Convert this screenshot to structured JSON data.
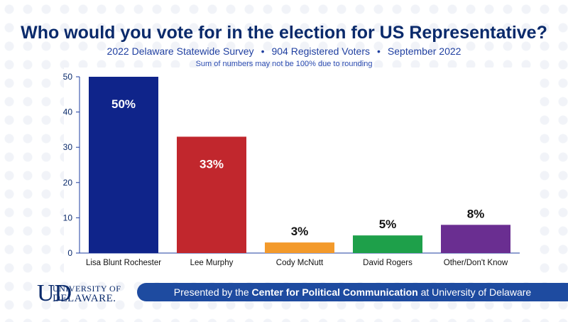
{
  "header": {
    "title": "Who would you vote for in the election for US Representative?",
    "survey": "2022 Delaware Statewide Survey",
    "voters": "904 Registered Voters",
    "date": "September 2022",
    "separator": "•",
    "note": "Sum of numbers may not be 100% due to rounding"
  },
  "footer": {
    "prefix": "Presented by the",
    "org": "Center for Political Communication",
    "suffix": "at University of Delaware"
  },
  "logo": {
    "mark": "UD",
    "line1": "UNIVERSITY OF",
    "line2": "DELAWARE."
  },
  "chart_data": {
    "type": "bar",
    "categories": [
      "Lisa Blunt Rochester",
      "Lee Murphy",
      "Cody McNutt",
      "David Rogers",
      "Other/Don't Know"
    ],
    "values": [
      50,
      33,
      3,
      5,
      8
    ],
    "data_labels": [
      "50%",
      "33%",
      "3%",
      "5%",
      "8%"
    ],
    "colors": [
      "#0f248a",
      "#c1272d",
      "#f39a2b",
      "#1ea04a",
      "#6a2e91"
    ],
    "label_inside": [
      true,
      true,
      false,
      false,
      false
    ],
    "ylim": [
      0,
      50
    ],
    "yticks": [
      0,
      10,
      20,
      30,
      40,
      50
    ],
    "grid": false,
    "axis_color": "#1f3fa0"
  }
}
